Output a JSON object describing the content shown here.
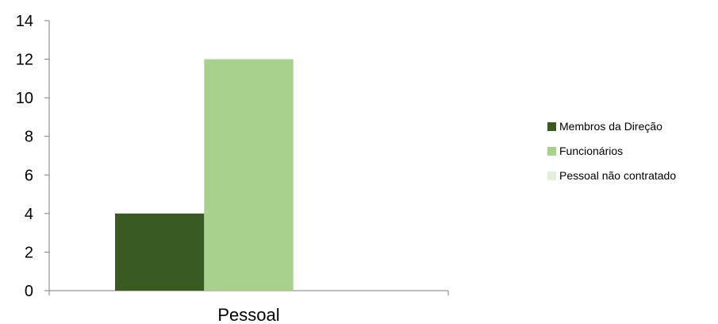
{
  "chart_data": {
    "type": "bar",
    "categories": [
      "Pessoal"
    ],
    "series": [
      {
        "name": "Membros da Direção",
        "values": [
          4
        ],
        "color": "#3a5a24"
      },
      {
        "name": "Funcionários",
        "values": [
          12
        ],
        "color": "#a8d18d"
      },
      {
        "name": "Pessoal não contratado",
        "values": [
          0
        ],
        "color": "#e2efda"
      }
    ],
    "yticks": [
      "0",
      "2",
      "4",
      "6",
      "8",
      "10",
      "12",
      "14"
    ],
    "ylim": [
      0,
      14
    ],
    "title": "",
    "xlabel": "",
    "ylabel": "",
    "grid": false,
    "legend_position": "right"
  }
}
